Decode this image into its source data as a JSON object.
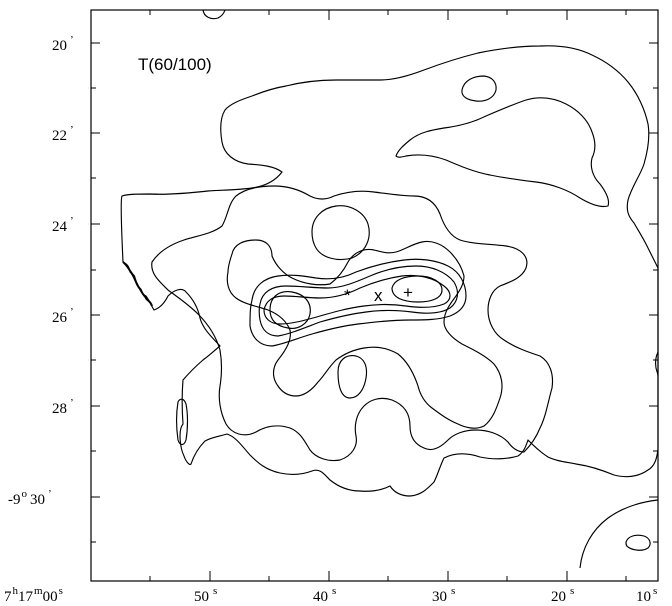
{
  "title": "T(60/100)",
  "dec_labels": [
    {
      "text": "20",
      "sup": "’"
    },
    {
      "text": "22",
      "sup": "’"
    },
    {
      "text": "24",
      "sup": "’"
    },
    {
      "text": "26",
      "sup": "’"
    },
    {
      "text": "28",
      "sup": "’"
    },
    {
      "text": "-9",
      "sup1": "o",
      "text2": "30",
      "sup": "’"
    }
  ],
  "ra_labels": [
    {
      "text": "7",
      "sup": "h",
      "text2": "17",
      "sup2": "m",
      "text3": "00",
      "sup3": "s"
    },
    {
      "text": "50",
      "sup": "s"
    },
    {
      "text": "40",
      "sup": "s"
    },
    {
      "text": "30",
      "sup": "s"
    },
    {
      "text": "20",
      "sup": "s"
    },
    {
      "text": "10",
      "sup": "s"
    }
  ],
  "markers": {
    "asterisk": "*",
    "x": "x",
    "plus": "+"
  }
}
